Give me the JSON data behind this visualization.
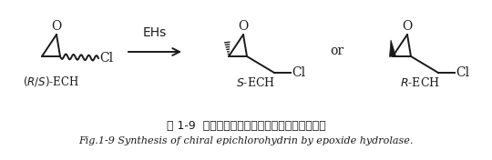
{
  "title_cn": "图 1-9  环氧化物水解酶催化合成手性环氧氯丙烷",
  "title_en": "Fig.1-9 Synthesis of chiral epichlorohydrin by epoxide hydrolase.",
  "label_rs": "(R/S)-ECH",
  "label_s": "S-ECH",
  "label_r": "R-ECH",
  "label_ehs": "EHs",
  "label_or": "or",
  "label_o": "O",
  "label_cl": "Cl",
  "bg_color": "#ffffff",
  "text_color": "#1a1a1a",
  "figsize": [
    5.4,
    1.76
  ],
  "dpi": 100
}
